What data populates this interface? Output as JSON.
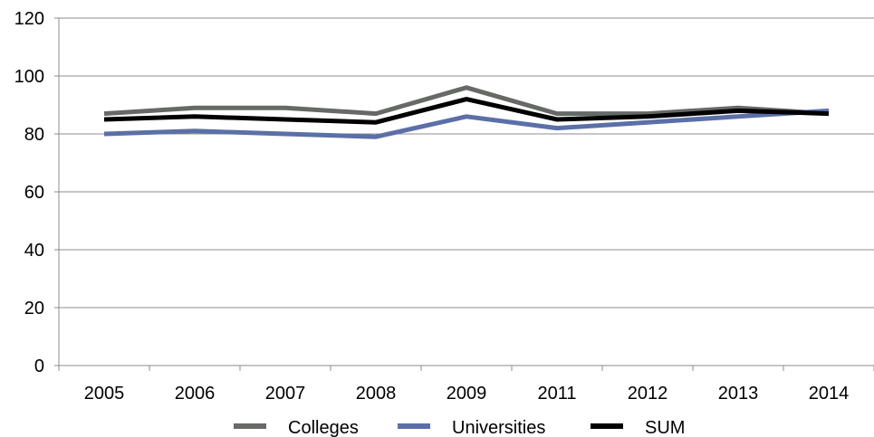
{
  "chart_data": {
    "type": "line",
    "title": "",
    "xlabel": "",
    "ylabel": "",
    "categories": [
      "2005",
      "2006",
      "2007",
      "2008",
      "2009",
      "2011",
      "2012",
      "2013",
      "2014"
    ],
    "ylim": [
      0,
      120
    ],
    "yticks": [
      0,
      20,
      40,
      60,
      80,
      100,
      120
    ],
    "grid": true,
    "legend": "bottom",
    "series": [
      {
        "name": "Colleges",
        "color": "#666966",
        "values": [
          87,
          89,
          89,
          87,
          96,
          87,
          87,
          89,
          87
        ]
      },
      {
        "name": "Universities",
        "color": "#5b6fa8",
        "values": [
          80,
          81,
          80,
          79,
          86,
          82,
          84,
          86,
          88
        ]
      },
      {
        "name": "SUM",
        "color": "#000000",
        "values": [
          85,
          86,
          85,
          84,
          92,
          85,
          86,
          88,
          87
        ]
      }
    ]
  }
}
